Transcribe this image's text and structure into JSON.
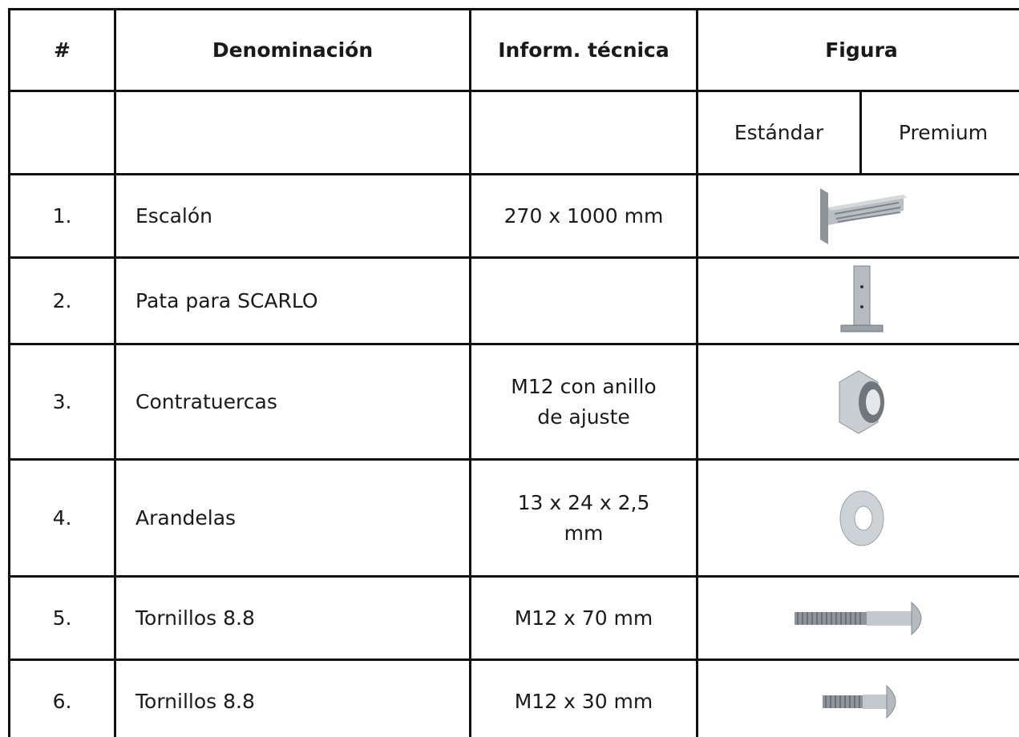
{
  "table": {
    "header": [
      "#",
      "Denominación",
      "Inform. técnica",
      "Figura"
    ],
    "subheader": [
      "Estándar",
      "Premium"
    ],
    "rows": [
      {
        "number": "1.",
        "name": "Escalón",
        "info": [
          "270 x 1000 mm"
        ]
      },
      {
        "number": "2.",
        "name": "Pata para SCARLO"
      },
      {
        "number": "3.",
        "name": "Contratuercas",
        "info": [
          "M12 con anillo",
          "de ajuste"
        ]
      },
      {
        "number": "4.",
        "name": "Arandelas",
        "info": [
          "13 x 24 x 2,5",
          "mm"
        ]
      },
      {
        "number": "5.",
        "name": "Tornillos 8.8",
        "info": [
          "M12 x 70 mm"
        ]
      },
      {
        "number": "6.",
        "name": "Tornillos 8.8",
        "info": [
          "M12 x 30 mm"
        ]
      }
    ]
  }
}
